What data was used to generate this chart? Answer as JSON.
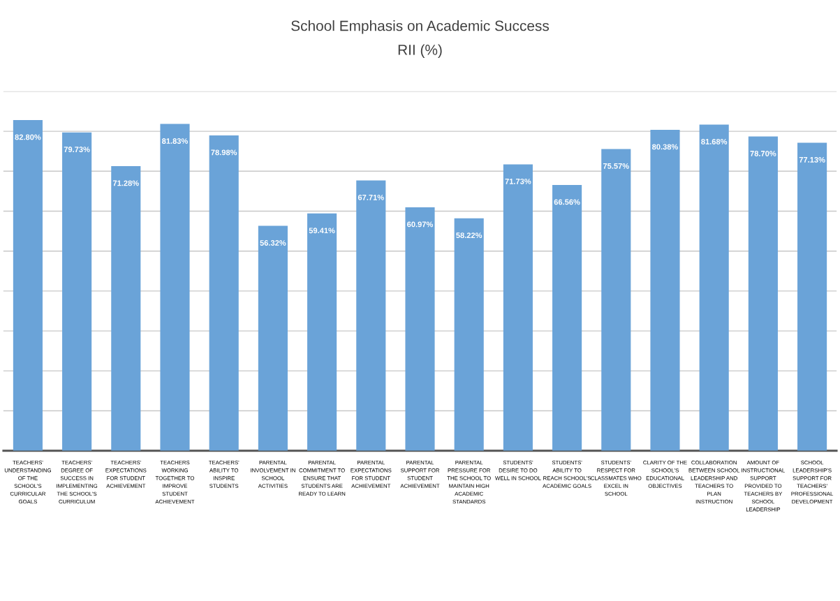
{
  "chart_data": {
    "type": "bar",
    "title": "School Emphasis on Academic Success",
    "subtitle": "RII (%)",
    "categories": [
      "TEACHERS' UNDERSTANDING OF THE SCHOOL'S CURRICULAR GOALS",
      "TEACHERS' DEGREE OF SUCCESS IN IMPLEMENTING THE SCHOOL'S CURRICULUM",
      "TEACHERS' EXPECTATIONS FOR STUDENT ACHIEVEMENT",
      "TEACHERS WORKING TOGETHER TO IMPROVE STUDENT ACHIEVEMENT",
      "TEACHERS' ABILITY TO INSPIRE STUDENTS",
      "PARENTAL INVOLVEMENT IN SCHOOL ACTIVITIES",
      "PARENTAL COMMITMENT TO ENSURE THAT STUDENTS ARE READY TO LEARN",
      "PARENTAL EXPECTATIONS FOR STUDENT ACHIEVEMENT",
      "PARENTAL SUPPORT FOR STUDENT ACHIEVEMENT",
      "PARENTAL PRESSURE FOR THE SCHOOL TO MAINTAIN HIGH ACADEMIC STANDARDS",
      "STUDENTS' DESIRE TO DO WELL IN SCHOOL",
      "STUDENTS' ABILITY TO REACH SCHOOL'S ACADEMIC GOALS",
      "STUDENTS' RESPECT FOR CLASSMATES WHO EXCEL IN SCHOOL",
      "CLARITY OF THE SCHOOL'S EDUCATIONAL OBJECTIVES",
      "COLLABORATION BETWEEN SCHOOL LEADERSHIP AND TEACHERS TO PLAN INSTRUCTION",
      "AMOUNT OF INSTRUCTIONAL SUPPORT PROVIDED TO TEACHERS BY SCHOOL LEADERSHIP",
      "SCHOOL LEADERSHIP'S SUPPORT FOR TEACHERS' PROFESSIONAL DEVELOPMENT"
    ],
    "values": [
      82.8,
      79.73,
      71.28,
      81.83,
      78.98,
      56.32,
      59.41,
      67.71,
      60.97,
      58.22,
      71.73,
      66.56,
      75.57,
      80.38,
      81.68,
      78.7,
      77.13
    ],
    "value_labels": [
      "82.80%",
      "79.73%",
      "71.28%",
      "81.83%",
      "78.98%",
      "56.32%",
      "59.41%",
      "67.71%",
      "60.97%",
      "58.22%",
      "71.73%",
      "66.56%",
      "75.57%",
      "80.38%",
      "81.68%",
      "78.70%",
      "77.13%"
    ],
    "color": "#6aa3d8",
    "ylim": [
      0,
      90
    ],
    "yticks": [
      {
        "value": 10,
        "label": null
      },
      {
        "value": 20,
        "label": null
      },
      {
        "value": 30,
        "label": null
      },
      {
        "value": 40,
        "label": null
      },
      {
        "value": 50,
        "label": null
      },
      {
        "value": 60,
        "label": null
      },
      {
        "value": 70,
        "label": null
      },
      {
        "value": 80,
        "label": null
      },
      {
        "value": 90,
        "label": null
      }
    ],
    "tick_labels": "x",
    "grid": "y",
    "legend": false
  }
}
